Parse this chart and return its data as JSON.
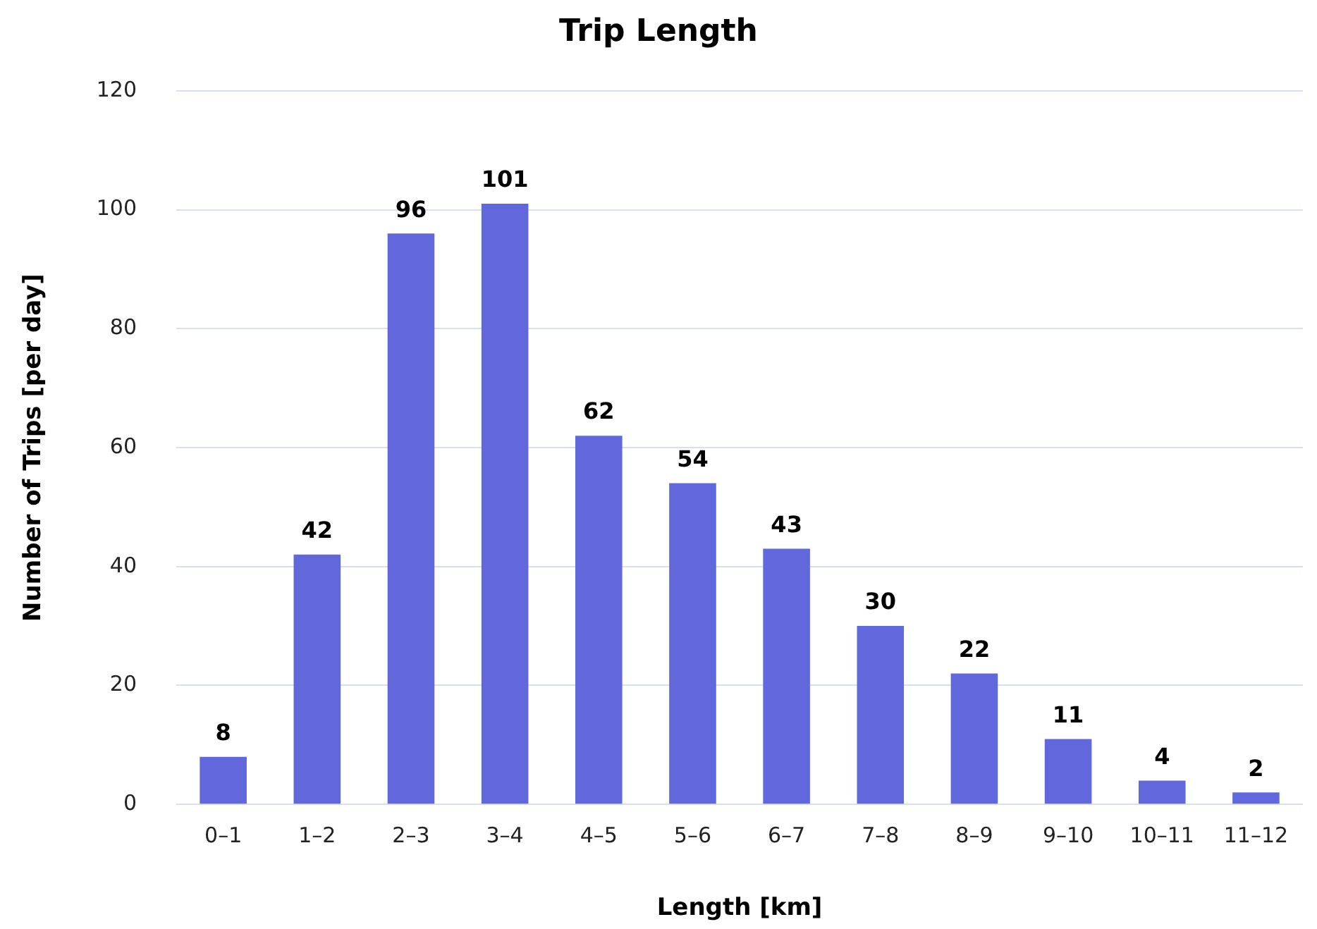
{
  "chart_data": {
    "type": "bar",
    "title": "Trip Length",
    "xlabel": "Length [km]",
    "ylabel": "Number of Trips [per day]",
    "categories": [
      "0–1",
      "1–2",
      "2–3",
      "3–4",
      "4–5",
      "5–6",
      "6–7",
      "7–8",
      "8–9",
      "9–10",
      "10–11",
      "11–12"
    ],
    "values": [
      8,
      42,
      96,
      101,
      62,
      54,
      43,
      30,
      22,
      11,
      4,
      2
    ],
    "color": "#6068dc",
    "ylim": [
      0,
      120
    ],
    "yticks": [
      0,
      20,
      40,
      60,
      80,
      100,
      120
    ],
    "grid": "y",
    "data_labels": true
  }
}
